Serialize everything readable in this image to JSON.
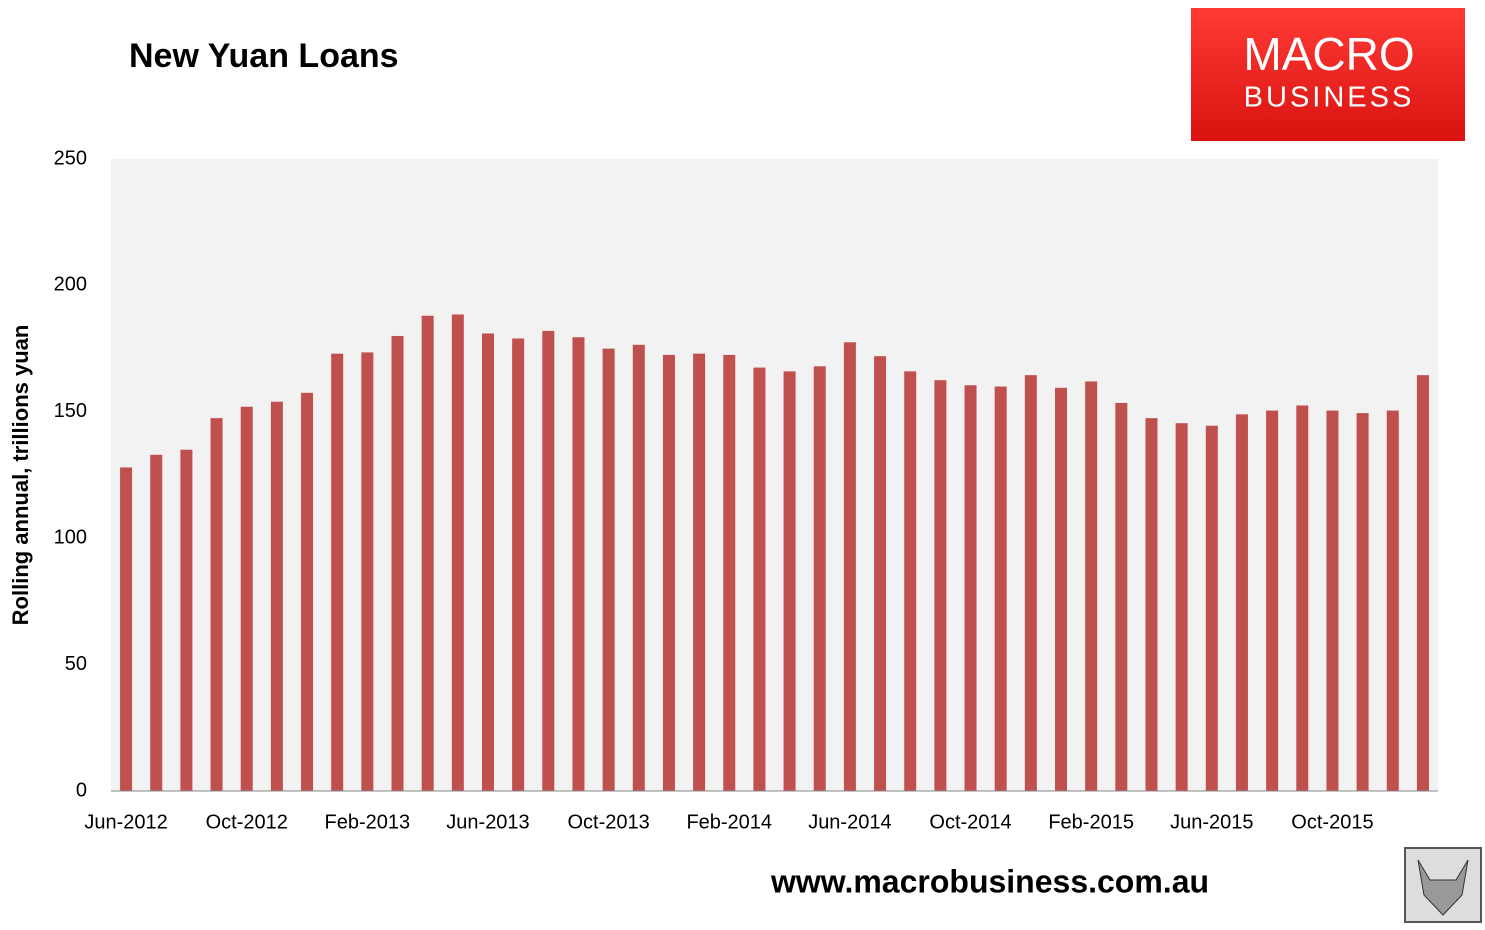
{
  "chart_data": {
    "type": "bar",
    "title": "New Yuan Loans",
    "logo": [
      "MACRO",
      "BUSINESS"
    ],
    "y_label": "Rolling annual, trillions yuan",
    "source": "www.macrobusiness.com.au",
    "categories": [
      "Jun-2012",
      null,
      null,
      null,
      "Oct-2012",
      null,
      null,
      null,
      "Feb-2013",
      null,
      null,
      null,
      "Jun-2013",
      null,
      null,
      null,
      "Oct-2013",
      null,
      null,
      null,
      "Feb-2014",
      null,
      null,
      null,
      "Jun-2014",
      null,
      null,
      null,
      "Oct-2014",
      null,
      null,
      null,
      "Feb-2015",
      null,
      null,
      null,
      "Jun-2015",
      null,
      null,
      null,
      "Oct-2015",
      null,
      null,
      null
    ],
    "values": [
      128,
      133,
      135,
      147.5,
      152,
      154,
      157.5,
      173,
      173.5,
      180,
      188,
      188.5,
      181,
      179,
      182,
      179.5,
      175,
      176.5,
      172.5,
      173,
      172.5,
      167.5,
      166,
      168,
      177.5,
      172,
      166,
      162.5,
      160.5,
      160,
      164.5,
      159.5,
      162,
      153.5,
      147.5,
      145.5,
      144.5,
      149,
      150.5,
      152.5,
      150.5,
      149.5,
      150.5,
      164.5
    ],
    "color": "#c0504d",
    "ylim": [
      0,
      250
    ],
    "yticks": [
      0,
      50,
      100,
      150,
      200,
      250
    ],
    "grid": false
  }
}
